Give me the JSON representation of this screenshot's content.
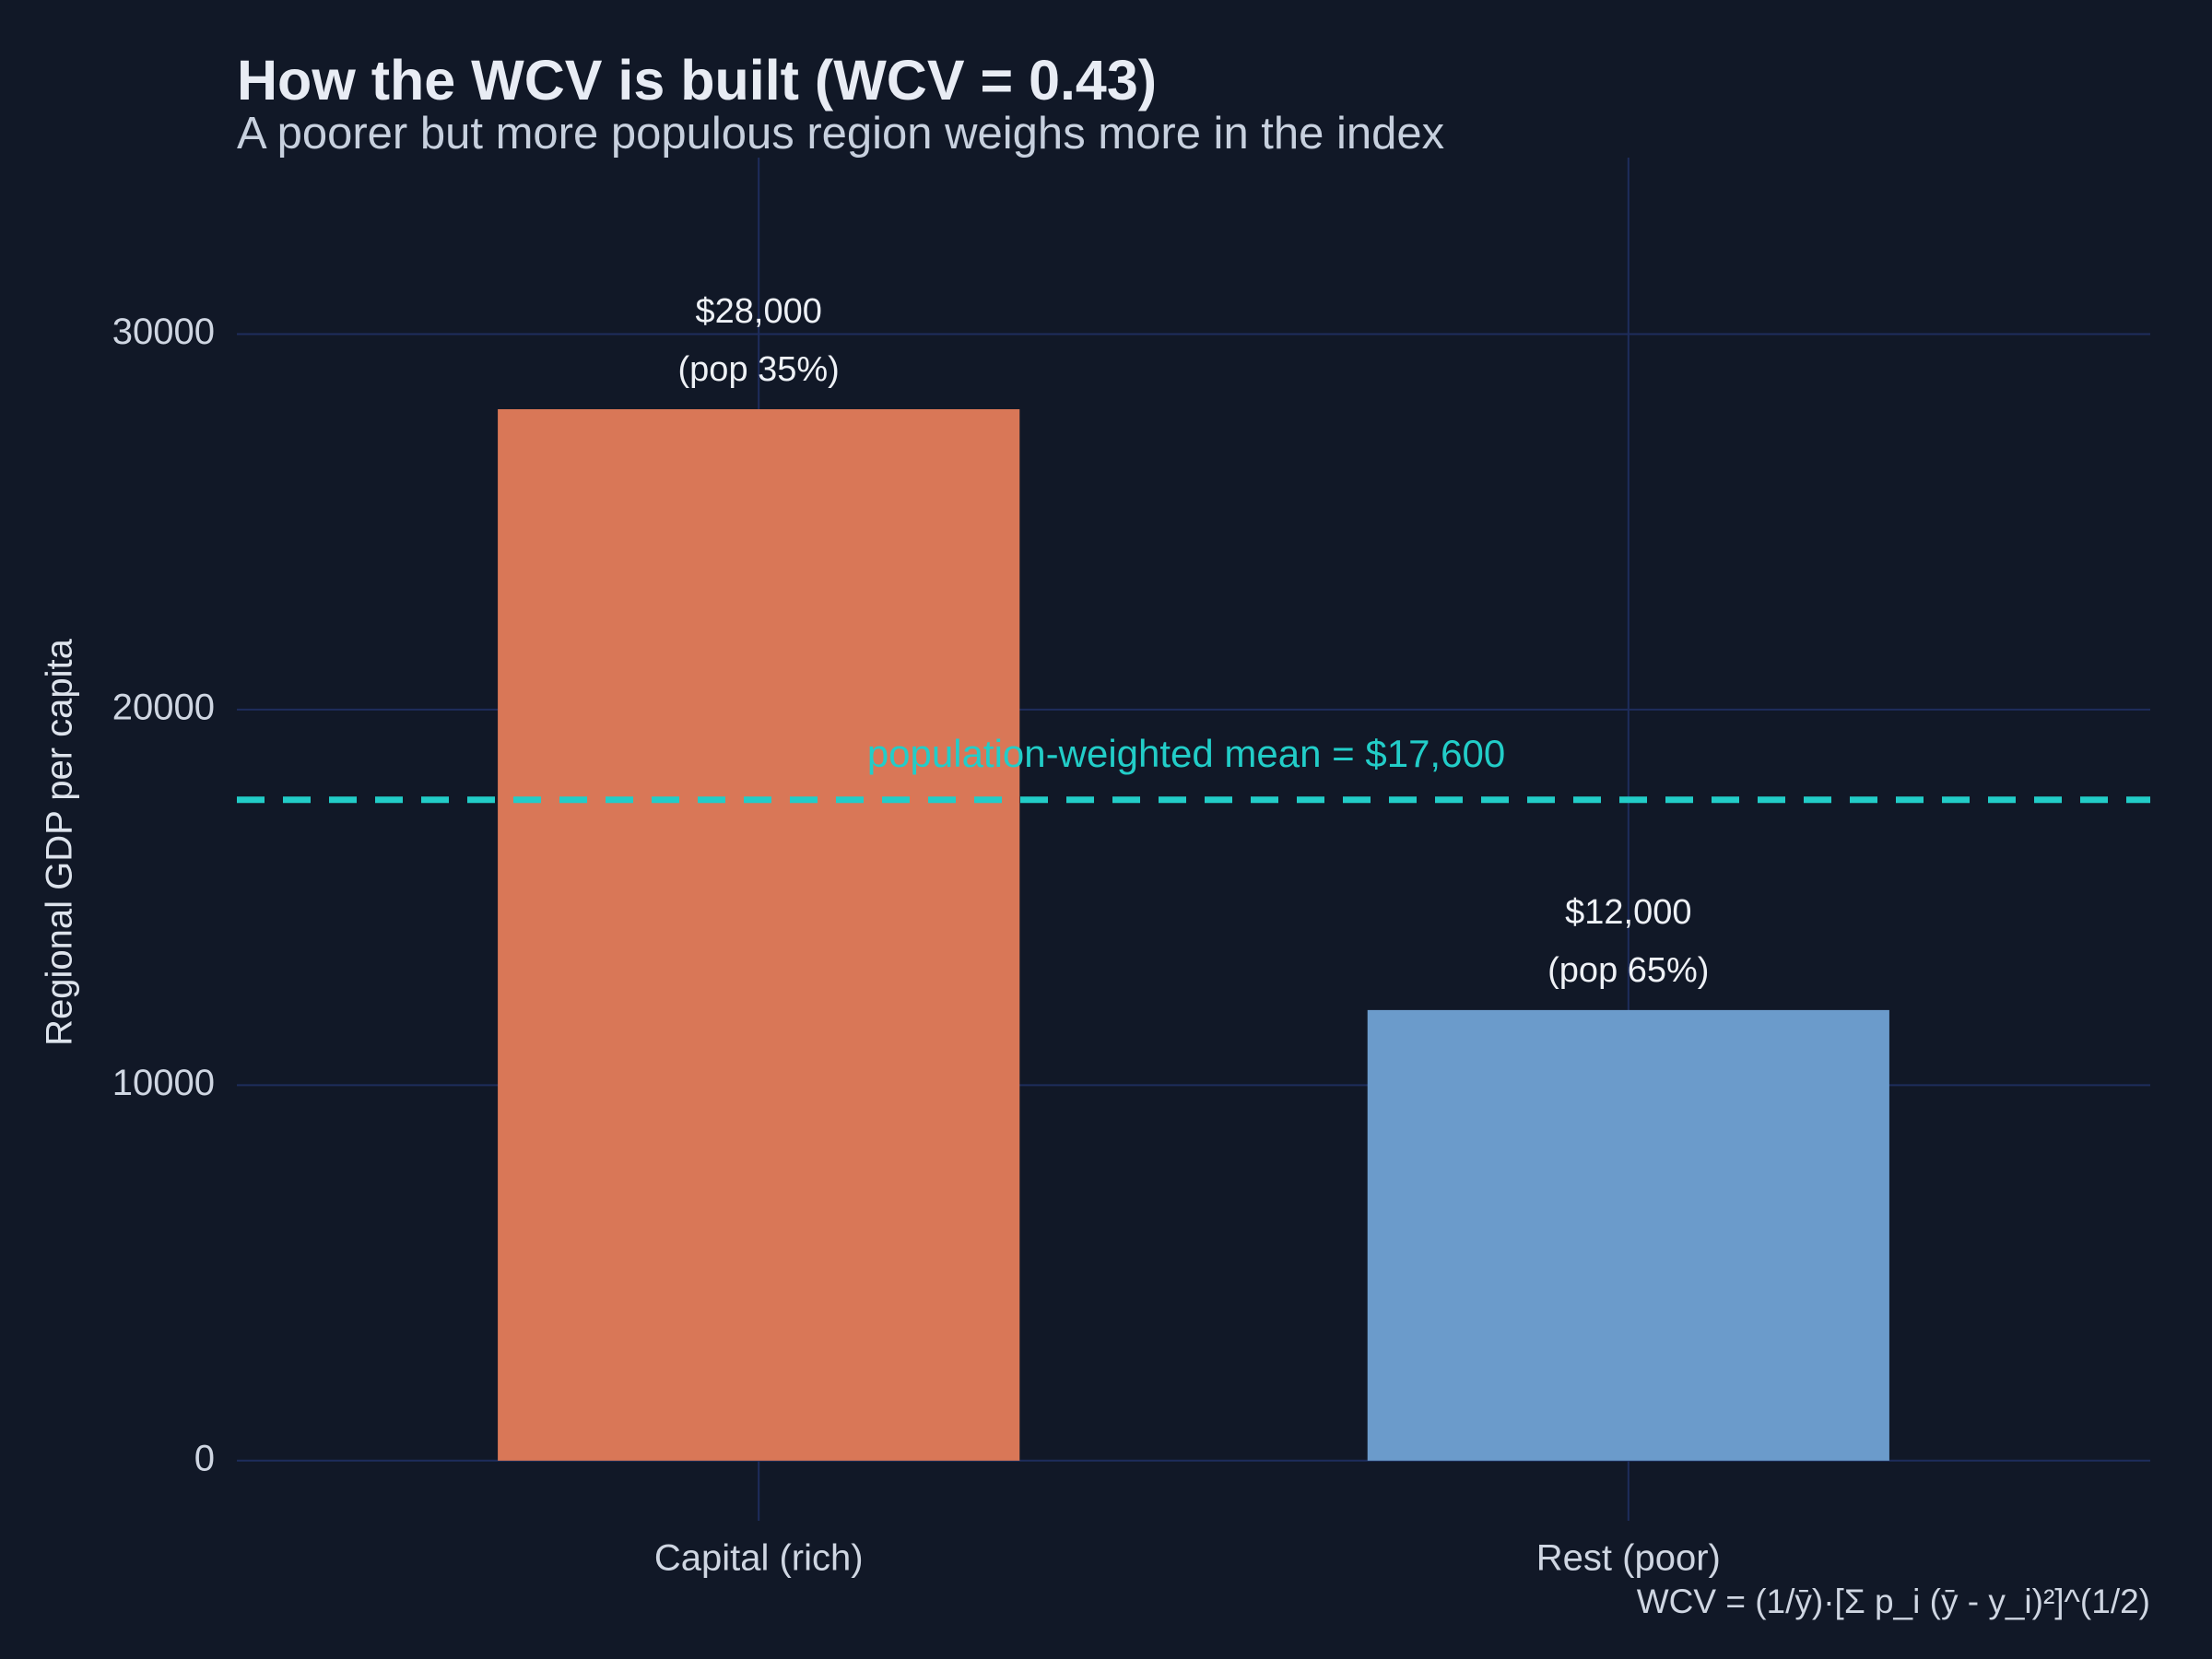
{
  "chart_data": {
    "type": "bar",
    "title": "How the WCV is built (WCV = 0.43)",
    "subtitle": "A poorer but more populous region weighs more in the index",
    "y_label": "Regional GDP per capita",
    "categories": [
      "Capital (rich)",
      "Rest (poor)"
    ],
    "values": [
      28000,
      12000
    ],
    "value_labels": [
      "$28,000",
      "$12,000"
    ],
    "population_labels": [
      "(pop 35%)",
      "(pop 65%)"
    ],
    "colors": [
      "#d97757",
      "#6b9bcb"
    ],
    "ylim": [
      -1600,
      34700
    ],
    "yticks": [
      0,
      10000,
      20000,
      30000
    ],
    "grid": true,
    "reference_line": {
      "value": 17600,
      "label": "population-weighted mean = $17,600",
      "color": "#22cdc8"
    },
    "footnote": "WCV = (1/ȳ)·[Σ p_i (ȳ - y_i)²]^(1/2)"
  }
}
